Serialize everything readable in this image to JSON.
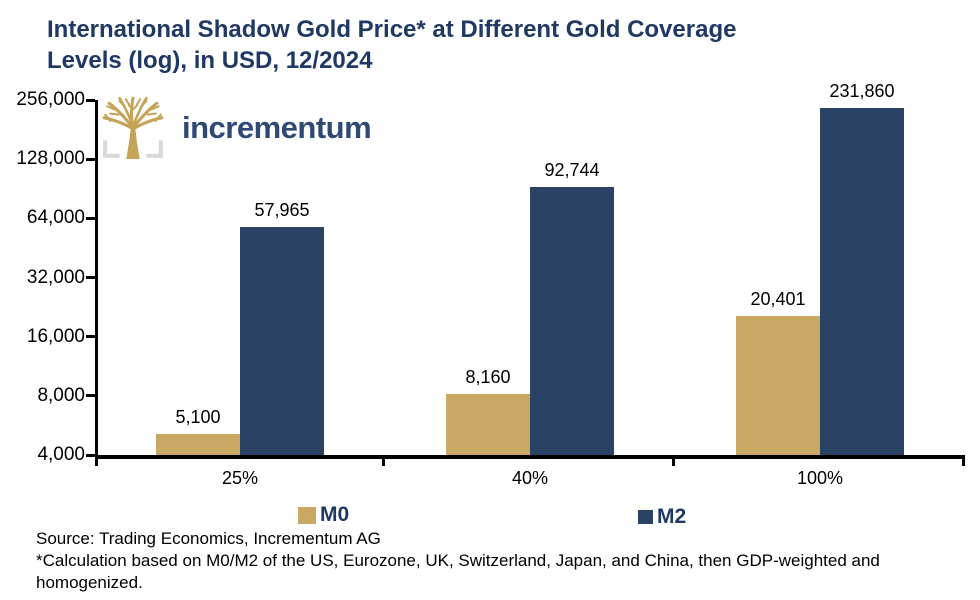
{
  "title": {
    "line1": "International Shadow Gold Price* at Different Gold Coverage",
    "line2": "Levels (log), in USD, 12/2024"
  },
  "logo": {
    "text": "incrementum"
  },
  "chart_data": {
    "type": "bar",
    "title": "International Shadow Gold Price* at Different Gold Coverage Levels (log), in USD, 12/2024",
    "y_scale": "log2",
    "categories": [
      "25%",
      "40%",
      "100%"
    ],
    "series": [
      {
        "name": "M0",
        "color": "#C8A862",
        "values": [
          5100,
          8160,
          20401
        ],
        "labels": [
          "5,100",
          "8,160",
          "20,401"
        ]
      },
      {
        "name": "M2",
        "color": "#2A4365",
        "values": [
          57965,
          92744,
          231860
        ],
        "labels": [
          "57,965",
          "92,744",
          "231,860"
        ]
      }
    ],
    "y_axis": {
      "min": 4000,
      "max": 256000,
      "ticks": [
        256000,
        128000,
        64000,
        32000,
        16000,
        8000,
        4000
      ],
      "tick_labels": [
        "256,000",
        "128,000",
        "64,000",
        "32,000",
        "16,000",
        "8,000",
        "4,000"
      ]
    },
    "grid": false,
    "legend_position": "bottom",
    "data_labels": true
  },
  "legend": [
    {
      "name": "M0"
    },
    {
      "name": "M2"
    }
  ],
  "footer": {
    "source": "Source: Trading Economics, Incrementum AG",
    "footnote": "*Calculation based on M0/M2 of the US, Eurozone, UK, Switzerland, Japan, and China, then GDP-weighted and homogenized."
  },
  "colors": {
    "title": "#1F3864",
    "m0": "#C8A862",
    "m2": "#2A4365",
    "axis": "#000000",
    "logo_text": "#2E4A74",
    "logo_tree": "#C5A45A",
    "logo_bracket": "#D9D9D9"
  }
}
